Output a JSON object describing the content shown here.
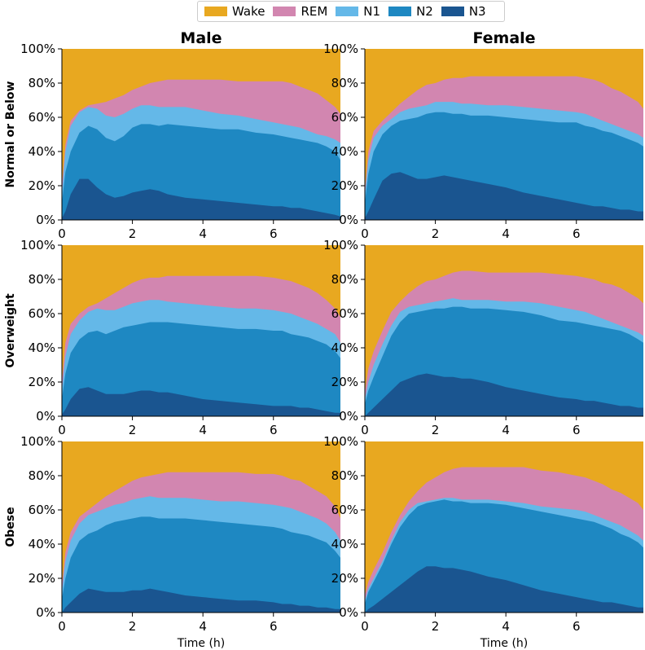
{
  "colors": {
    "Wake": "#E8A820",
    "REM": "#D286B0",
    "N1": "#64B8E8",
    "N2": "#1E88C2",
    "N3": "#1A5590"
  },
  "legend": [
    "Wake",
    "REM",
    "N1",
    "N2",
    "N3"
  ],
  "col_titles": [
    "Male",
    "Female"
  ],
  "row_labels": [
    "Normal or Below",
    "Overweight",
    "Obese"
  ],
  "chart_data": {
    "type": "area",
    "stacked": true,
    "xlabel": "Time (h)",
    "xlim": [
      0,
      7.9
    ],
    "ylim": [
      0,
      100
    ],
    "xticks": [
      0,
      2,
      4,
      6
    ],
    "yticks": [
      "0%",
      "20%",
      "40%",
      "60%",
      "80%",
      "100%"
    ],
    "x": [
      0,
      0.1,
      0.25,
      0.5,
      0.75,
      1.0,
      1.25,
      1.5,
      1.75,
      2.0,
      2.25,
      2.5,
      2.75,
      3.0,
      3.5,
      4.0,
      4.5,
      5.0,
      5.5,
      6.0,
      6.25,
      6.5,
      6.75,
      7.0,
      7.25,
      7.5,
      7.75,
      7.9
    ],
    "panels": [
      {
        "row": "Normal or Below",
        "col": "Male",
        "N3": [
          1,
          5,
          15,
          24,
          24,
          19,
          15,
          13,
          14,
          16,
          17,
          18,
          17,
          15,
          13,
          12,
          11,
          10,
          9,
          8,
          8,
          7,
          7,
          6,
          5,
          4,
          3,
          2
        ],
        "N2": [
          10,
          28,
          40,
          51,
          55,
          53,
          48,
          46,
          49,
          54,
          56,
          56,
          55,
          56,
          55,
          54,
          53,
          53,
          51,
          50,
          49,
          48,
          47,
          46,
          45,
          43,
          40,
          35
        ],
        "N1": [
          15,
          40,
          55,
          63,
          66,
          65,
          61,
          60,
          62,
          65,
          67,
          67,
          66,
          66,
          66,
          64,
          62,
          61,
          59,
          57,
          56,
          55,
          54,
          52,
          50,
          49,
          47,
          45
        ],
        "REM": [
          20,
          44,
          58,
          64,
          67,
          68,
          69,
          71,
          73,
          76,
          78,
          80,
          81,
          82,
          82,
          82,
          82,
          81,
          81,
          81,
          81,
          80,
          78,
          76,
          74,
          70,
          66,
          62
        ]
      },
      {
        "row": "Normal or Below",
        "col": "Female",
        "N3": [
          1,
          5,
          12,
          23,
          27,
          28,
          26,
          24,
          24,
          25,
          26,
          25,
          24,
          23,
          21,
          19,
          16,
          14,
          12,
          10,
          9,
          8,
          8,
          7,
          6,
          6,
          5,
          5
        ],
        "N2": [
          10,
          27,
          40,
          50,
          55,
          58,
          59,
          60,
          62,
          63,
          63,
          62,
          62,
          61,
          61,
          60,
          59,
          58,
          57,
          57,
          55,
          54,
          52,
          51,
          49,
          47,
          45,
          43
        ],
        "N1": [
          14,
          35,
          48,
          55,
          59,
          63,
          65,
          66,
          67,
          69,
          69,
          69,
          68,
          68,
          67,
          67,
          66,
          65,
          64,
          63,
          62,
          60,
          58,
          56,
          54,
          52,
          50,
          48
        ],
        "REM": [
          17,
          40,
          52,
          58,
          63,
          68,
          72,
          76,
          79,
          80,
          82,
          83,
          83,
          84,
          84,
          84,
          84,
          84,
          84,
          84,
          83,
          82,
          80,
          77,
          75,
          72,
          69,
          65
        ]
      },
      {
        "row": "Overweight",
        "col": "Male",
        "N3": [
          1,
          4,
          10,
          16,
          17,
          15,
          13,
          13,
          13,
          14,
          15,
          15,
          14,
          14,
          12,
          10,
          9,
          8,
          7,
          6,
          6,
          6,
          5,
          5,
          4,
          3,
          2,
          2
        ],
        "N2": [
          10,
          25,
          37,
          45,
          49,
          50,
          48,
          50,
          52,
          53,
          54,
          55,
          55,
          55,
          54,
          53,
          52,
          51,
          51,
          50,
          50,
          48,
          47,
          46,
          44,
          42,
          38,
          34
        ],
        "N1": [
          15,
          35,
          48,
          56,
          61,
          63,
          62,
          62,
          64,
          66,
          67,
          68,
          68,
          67,
          66,
          65,
          64,
          63,
          63,
          62,
          61,
          60,
          58,
          56,
          54,
          51,
          48,
          43
        ],
        "REM": [
          20,
          43,
          54,
          60,
          64,
          66,
          69,
          72,
          75,
          78,
          80,
          81,
          81,
          82,
          82,
          82,
          82,
          82,
          82,
          81,
          80,
          79,
          77,
          75,
          72,
          68,
          63,
          58
        ]
      },
      {
        "row": "Overweight",
        "col": "Female",
        "N3": [
          0,
          2,
          5,
          10,
          15,
          20,
          22,
          24,
          25,
          24,
          23,
          23,
          22,
          22,
          20,
          17,
          15,
          13,
          11,
          10,
          9,
          9,
          8,
          7,
          6,
          6,
          5,
          5
        ],
        "N2": [
          7,
          15,
          23,
          35,
          47,
          55,
          60,
          61,
          62,
          63,
          63,
          64,
          64,
          63,
          63,
          62,
          61,
          59,
          56,
          55,
          54,
          53,
          52,
          51,
          50,
          48,
          45,
          43
        ],
        "N1": [
          10,
          20,
          30,
          42,
          53,
          61,
          64,
          65,
          66,
          67,
          68,
          69,
          68,
          68,
          68,
          67,
          67,
          66,
          64,
          62,
          61,
          59,
          57,
          55,
          53,
          51,
          49,
          47
        ],
        "REM": [
          14,
          28,
          38,
          50,
          61,
          67,
          72,
          76,
          79,
          80,
          82,
          84,
          85,
          85,
          84,
          84,
          84,
          84,
          83,
          82,
          81,
          80,
          78,
          77,
          75,
          72,
          69,
          66
        ]
      },
      {
        "row": "Obese",
        "col": "Male",
        "N3": [
          0,
          3,
          6,
          11,
          14,
          13,
          12,
          12,
          12,
          13,
          13,
          14,
          13,
          12,
          10,
          9,
          8,
          7,
          7,
          6,
          5,
          5,
          4,
          4,
          3,
          3,
          2,
          2
        ],
        "N2": [
          8,
          20,
          32,
          42,
          46,
          48,
          51,
          53,
          54,
          55,
          56,
          56,
          55,
          55,
          55,
          54,
          53,
          52,
          51,
          50,
          49,
          47,
          46,
          45,
          43,
          41,
          36,
          32
        ],
        "N1": [
          12,
          30,
          42,
          52,
          57,
          59,
          61,
          63,
          64,
          66,
          67,
          68,
          67,
          67,
          67,
          66,
          65,
          65,
          64,
          63,
          62,
          61,
          59,
          57,
          55,
          52,
          47,
          42
        ],
        "REM": [
          16,
          35,
          47,
          56,
          60,
          64,
          68,
          71,
          74,
          77,
          79,
          80,
          81,
          82,
          82,
          82,
          82,
          82,
          81,
          81,
          80,
          78,
          77,
          74,
          71,
          68,
          62,
          55
        ]
      },
      {
        "row": "Obese",
        "col": "Female",
        "N3": [
          0,
          2,
          4,
          8,
          12,
          16,
          20,
          24,
          27,
          27,
          26,
          26,
          25,
          24,
          21,
          19,
          16,
          13,
          11,
          9,
          8,
          7,
          6,
          6,
          5,
          4,
          3,
          3
        ],
        "N2": [
          5,
          12,
          18,
          28,
          40,
          50,
          57,
          62,
          64,
          65,
          66,
          65,
          65,
          64,
          64,
          63,
          61,
          59,
          57,
          55,
          54,
          53,
          51,
          49,
          46,
          44,
          41,
          38
        ],
        "N1": [
          7,
          14,
          20,
          30,
          42,
          53,
          60,
          64,
          65,
          66,
          67,
          67,
          66,
          66,
          66,
          65,
          64,
          62,
          61,
          60,
          59,
          57,
          55,
          53,
          51,
          48,
          45,
          42
        ],
        "REM": [
          10,
          18,
          25,
          35,
          47,
          57,
          65,
          71,
          76,
          79,
          82,
          84,
          85,
          85,
          85,
          85,
          85,
          83,
          82,
          80,
          79,
          77,
          75,
          72,
          70,
          67,
          64,
          60
        ]
      }
    ]
  }
}
